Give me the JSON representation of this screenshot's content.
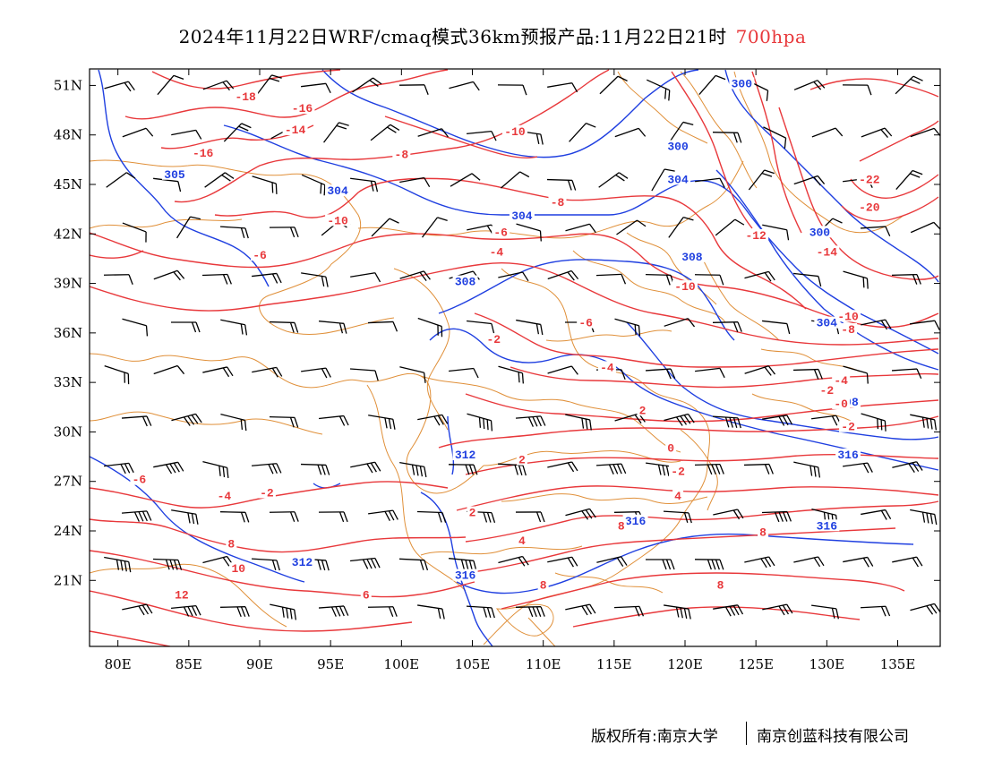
{
  "title": {
    "main": "2024年11月22日WRF/cmaq模式36km预报产品:11月22日21时",
    "level": "700hpa"
  },
  "colors": {
    "temperature": "#e8383b",
    "geopotential": "#1f3fe0",
    "boundary": "#e0903a",
    "wind": "#000000"
  },
  "axes": {
    "lon_ticks": [
      "80E",
      "85E",
      "90E",
      "95E",
      "100E",
      "105E",
      "110E",
      "115E",
      "120E",
      "125E",
      "130E",
      "135E"
    ],
    "lat_ticks": [
      "51N",
      "48N",
      "45N",
      "42N",
      "39N",
      "36N",
      "33N",
      "30N",
      "27N",
      "24N",
      "21N"
    ],
    "lon_range": [
      78,
      138
    ],
    "lat_range": [
      17,
      52
    ]
  },
  "height_labels": [
    {
      "text": "300",
      "lon": 119.5,
      "lat": 47.2
    },
    {
      "text": "300",
      "lon": 124.0,
      "lat": 51.0
    },
    {
      "text": "304",
      "lon": 119.5,
      "lat": 45.2
    },
    {
      "text": "304",
      "lon": 95.5,
      "lat": 44.5
    },
    {
      "text": "304",
      "lon": 108.5,
      "lat": 43.0
    },
    {
      "text": "305",
      "lon": 84.0,
      "lat": 45.5
    },
    {
      "text": "300",
      "lon": 129.5,
      "lat": 42.0
    },
    {
      "text": "308",
      "lon": 120.5,
      "lat": 40.5
    },
    {
      "text": "308",
      "lon": 104.5,
      "lat": 39.0
    },
    {
      "text": "304",
      "lon": 130.0,
      "lat": 36.5
    },
    {
      "text": "308",
      "lon": 131.5,
      "lat": 31.7
    },
    {
      "text": "312",
      "lon": 104.5,
      "lat": 28.5
    },
    {
      "text": "312",
      "lon": 93.0,
      "lat": 22.0
    },
    {
      "text": "316",
      "lon": 116.5,
      "lat": 24.5
    },
    {
      "text": "316",
      "lon": 104.5,
      "lat": 21.2
    },
    {
      "text": "316",
      "lon": 130.0,
      "lat": 24.2
    },
    {
      "text": "316",
      "lon": 131.5,
      "lat": 28.5
    }
  ],
  "temperature_labels": [
    {
      "text": "-18",
      "lon": 89.0,
      "lat": 50.2
    },
    {
      "text": "-16",
      "lon": 93.0,
      "lat": 49.5
    },
    {
      "text": "-14",
      "lon": 92.5,
      "lat": 48.2
    },
    {
      "text": "-16",
      "lon": 86.0,
      "lat": 46.8
    },
    {
      "text": "-10",
      "lon": 108.0,
      "lat": 48.1
    },
    {
      "text": "-8",
      "lon": 100.0,
      "lat": 46.7
    },
    {
      "text": "-10",
      "lon": 95.5,
      "lat": 42.7
    },
    {
      "text": "-6",
      "lon": 107.0,
      "lat": 42.0
    },
    {
      "text": "-8",
      "lon": 111.0,
      "lat": 43.8
    },
    {
      "text": "-6",
      "lon": 90.0,
      "lat": 40.6
    },
    {
      "text": "-4",
      "lon": 106.7,
      "lat": 40.8
    },
    {
      "text": "-12",
      "lon": 125.0,
      "lat": 41.8
    },
    {
      "text": "-14",
      "lon": 130.0,
      "lat": 40.8
    },
    {
      "text": "-22",
      "lon": 133.0,
      "lat": 45.2
    },
    {
      "text": "-20",
      "lon": 133.0,
      "lat": 43.5
    },
    {
      "text": "-10",
      "lon": 120.0,
      "lat": 38.7
    },
    {
      "text": "-6",
      "lon": 113.0,
      "lat": 36.5
    },
    {
      "text": "-10",
      "lon": 131.5,
      "lat": 36.9
    },
    {
      "text": "-8",
      "lon": 131.5,
      "lat": 36.1
    },
    {
      "text": "-2",
      "lon": 106.5,
      "lat": 35.5
    },
    {
      "text": "-4",
      "lon": 114.5,
      "lat": 33.8
    },
    {
      "text": "-4",
      "lon": 131.0,
      "lat": 33.0
    },
    {
      "text": "-2",
      "lon": 130.0,
      "lat": 32.4
    },
    {
      "text": "-0",
      "lon": 131.0,
      "lat": 31.6
    },
    {
      "text": "-2",
      "lon": 131.5,
      "lat": 30.2
    },
    {
      "text": "2",
      "lon": 117.0,
      "lat": 31.2
    },
    {
      "text": "0",
      "lon": 119.0,
      "lat": 28.9
    },
    {
      "text": "-6",
      "lon": 81.5,
      "lat": 27.0
    },
    {
      "text": "-4",
      "lon": 87.5,
      "lat": 26.0
    },
    {
      "text": "-2",
      "lon": 90.5,
      "lat": 26.2
    },
    {
      "text": "2",
      "lon": 108.5,
      "lat": 28.2
    },
    {
      "text": "-2",
      "lon": 119.5,
      "lat": 27.5
    },
    {
      "text": "4",
      "lon": 119.5,
      "lat": 26.0
    },
    {
      "text": "2",
      "lon": 105.0,
      "lat": 25.0
    },
    {
      "text": "4",
      "lon": 108.5,
      "lat": 23.3
    },
    {
      "text": "8",
      "lon": 88.0,
      "lat": 23.1
    },
    {
      "text": "10",
      "lon": 88.5,
      "lat": 21.6
    },
    {
      "text": "6",
      "lon": 97.5,
      "lat": 20.0
    },
    {
      "text": "8",
      "lon": 110.0,
      "lat": 20.6
    },
    {
      "text": "8",
      "lon": 122.5,
      "lat": 20.6
    },
    {
      "text": "8",
      "lon": 125.5,
      "lat": 23.8
    },
    {
      "text": "12",
      "lon": 84.5,
      "lat": 20.0
    },
    {
      "text": "8",
      "lon": 115.5,
      "lat": 24.2
    }
  ],
  "footer": {
    "copyright": "版权所有:南京大学",
    "company": "南京创蓝科技有限公司"
  }
}
